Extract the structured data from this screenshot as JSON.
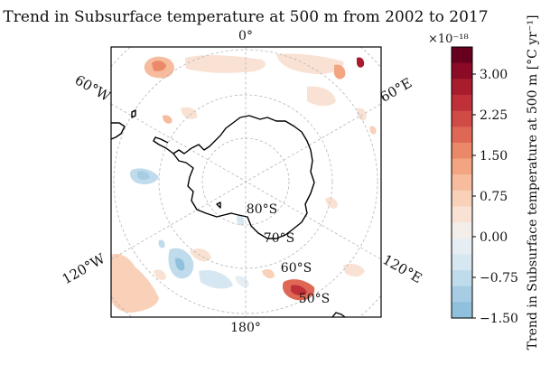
{
  "title": "Trend in Subsurface temperature at 500 m from 2002 to 2017",
  "map": {
    "projection": "south-polar-stereographic",
    "longitude_labels": {
      "top": "0°",
      "bottom": "180°",
      "upper_left": "60°W",
      "upper_right": "60°E",
      "lower_left": "120°W",
      "lower_right": "120°E"
    },
    "latitude_labels": {
      "lat80": "80°S",
      "lat70": "70°S",
      "lat60": "60°S",
      "lat50": "50°S"
    },
    "gridline_style": "dashed gray",
    "coastline_color": "#000000"
  },
  "colorbar": {
    "label": "Trend in Subsurface temperature at 500 m [°C yr⁻¹]",
    "offset_text": "×10⁻¹⁸",
    "tick_labels": [
      "3.00",
      "2.25",
      "1.50",
      "0.75",
      "0.00",
      "−0.75",
      "−1.50"
    ],
    "tick_values": [
      3.0,
      2.25,
      1.5,
      0.75,
      0.0,
      -0.75,
      -1.5
    ],
    "range": [
      -1.5,
      3.5
    ],
    "levels_top_to_bottom_colors": [
      "#67001f",
      "#8b0a26",
      "#a81c2e",
      "#bf3038",
      "#d04a46",
      "#df6755",
      "#eb8868",
      "#f3a582",
      "#f7bc9e",
      "#f9d0b8",
      "#f9e2d4",
      "#f4eeea",
      "#e7eef3",
      "#d6e7f1",
      "#c0dbeb",
      "#a6cde3",
      "#8fc1dc"
    ]
  }
}
